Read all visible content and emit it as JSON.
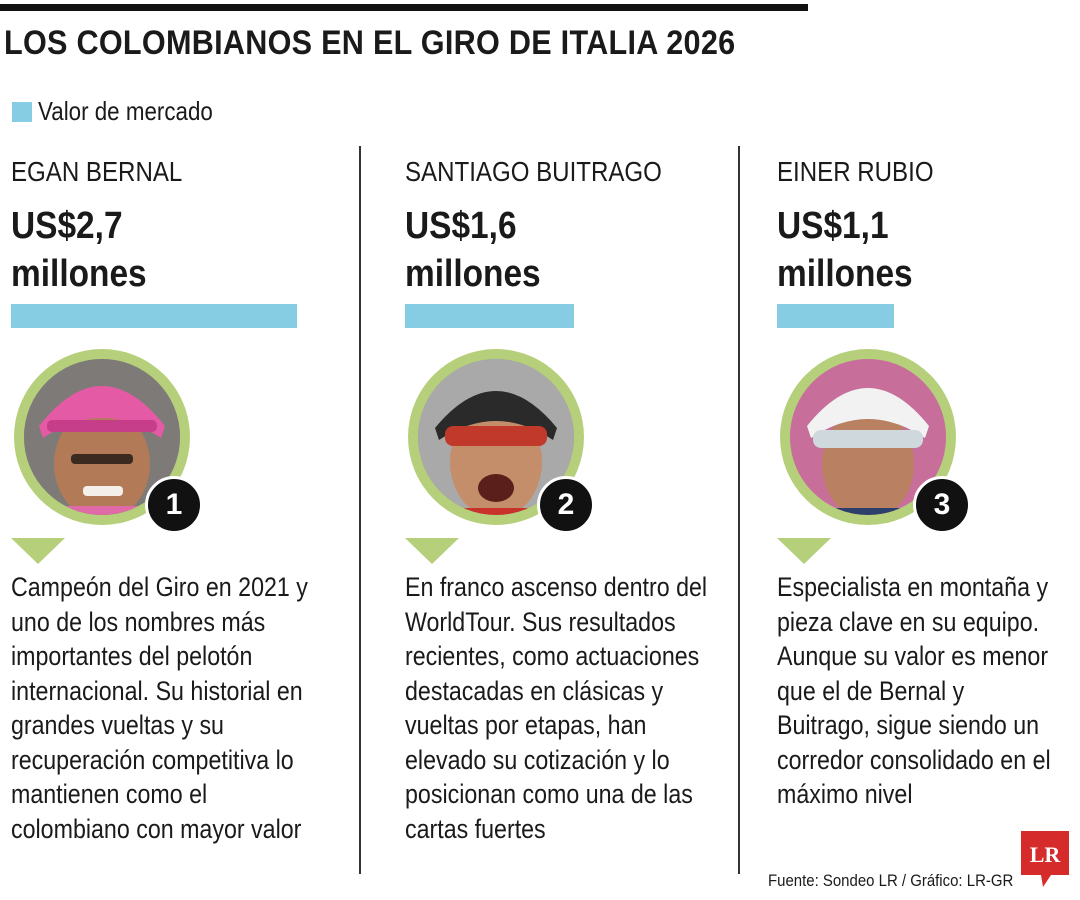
{
  "title": "LOS COLOMBIANOS EN EL GIRO DE ITALIA 2026",
  "legend": {
    "label": "Valor de mercado",
    "color": "#86cde4"
  },
  "chart_data": {
    "type": "bar",
    "categories": [
      "EGAN BERNAL",
      "SANTIAGO BUITRAGO",
      "EINER RUBIO"
    ],
    "values": [
      2.7,
      1.6,
      1.1
    ],
    "ylabel": "",
    "series": [
      {
        "name": "Valor de mercado",
        "values": [
          2.7,
          1.6,
          1.1
        ]
      }
    ]
  },
  "riders": [
    {
      "name": "EGAN BERNAL",
      "value_line1": "US$2,7",
      "value_line2": "millones",
      "rank": "1",
      "desc": [
        "Campeón del Giro en 2021 y",
        "uno de los nombres más",
        "importantes del pelotón",
        "internacional. Su historial en",
        "grandes vueltas y su",
        "recuperación competitiva lo",
        "mantienen como el",
        "colombiano con mayor valor"
      ]
    },
    {
      "name": "SANTIAGO BUITRAGO",
      "value_line1": "US$1,6",
      "value_line2": "millones",
      "rank": "2",
      "desc": [
        "En franco ascenso dentro del",
        "WorldTour. Sus resultados",
        "recientes, como actuaciones",
        "destacadas en clásicas y",
        "vueltas por etapas, han",
        "elevado su cotización y lo",
        "posicionan como una de las",
        "cartas fuertes"
      ]
    },
    {
      "name": "EINER RUBIO",
      "value_line1": "US$1,1",
      "value_line2": "millones",
      "rank": "3",
      "desc": [
        "Especialista en montaña y",
        "pieza clave en su equipo.",
        "Aunque su valor es menor",
        "que el de Bernal y",
        "Buitrago, sigue siendo un",
        "corredor consolidado en el",
        "máximo nivel"
      ]
    }
  ],
  "source": "Fuente: Sondeo LR / Gráfico: LR-GR",
  "logo_text": "LR",
  "colors": {
    "bar": "#86cde4",
    "ring": "#b5cf7a",
    "logo": "#d62b2b"
  }
}
